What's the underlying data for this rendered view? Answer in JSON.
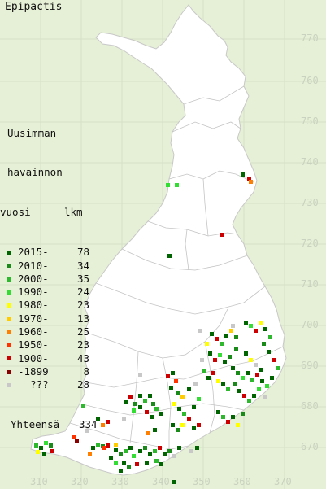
{
  "title": "Epipactis",
  "legend": {
    "header_lines": [
      "Uusimman",
      "havainnon",
      "vuosi"
    ],
    "count_header": "lkm",
    "rows": [
      {
        "label": "2015-",
        "count": "78",
        "color": "#006400"
      },
      {
        "label": "2010-",
        "count": "34",
        "color": "#1a8a1a"
      },
      {
        "label": "2000-",
        "count": "35",
        "color": "#2eb82e"
      },
      {
        "label": "1990-",
        "count": "24",
        "color": "#33dd33"
      },
      {
        "label": "1980-",
        "count": "23",
        "color": "#ffff00"
      },
      {
        "label": "1970-",
        "count": "13",
        "color": "#ffcc00"
      },
      {
        "label": "1960-",
        "count": "25",
        "color": "#ff8000"
      },
      {
        "label": "1950-",
        "count": "23",
        "color": "#ff3300"
      },
      {
        "label": "1900-",
        "count": "43",
        "color": "#cc0000"
      },
      {
        "label": "-1899",
        "count": "8",
        "color": "#880000"
      },
      {
        "label": "???",
        "count": "28",
        "color": "#c8c8c8"
      }
    ],
    "total_label": "Yhteensä",
    "total_count": "334"
  },
  "grid": {
    "y_labels": [
      "770",
      "760",
      "750",
      "740",
      "730",
      "720",
      "710",
      "700",
      "690",
      "680",
      "670"
    ],
    "x_labels": [
      "310",
      "320",
      "330",
      "340",
      "350",
      "360",
      "370"
    ]
  },
  "colors": {
    "background": "#e6f0d6",
    "land": "#ffffff",
    "border": "#b8b8b8"
  }
}
